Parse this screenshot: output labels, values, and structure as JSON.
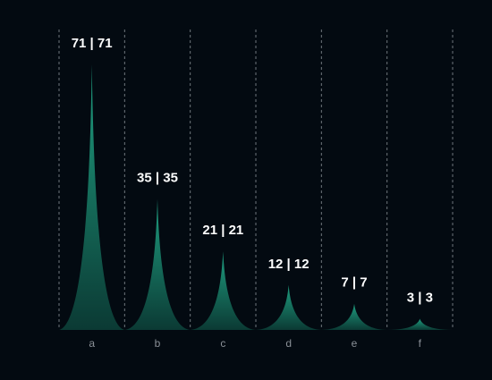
{
  "chart_data": {
    "type": "area",
    "categories": [
      "a",
      "b",
      "c",
      "d",
      "e",
      "f"
    ],
    "series": [
      {
        "values": [
          71,
          35,
          21,
          12,
          7,
          3
        ]
      },
      {
        "values": [
          71,
          35,
          21,
          12,
          7,
          3
        ]
      }
    ],
    "data_labels": [
      "71 | 71",
      "35 | 35",
      "21 | 21",
      "12 | 12",
      "7 | 7",
      "3 | 3"
    ],
    "title": "",
    "xlabel": "",
    "ylabel": "",
    "ylim": [
      0,
      71
    ],
    "grid": "vertical dashed",
    "colors": {
      "background": "#030a11",
      "peak_fill_top": "#1f9e80",
      "peak_fill_bottom": "#0b3a34",
      "grid": "#6f767d",
      "value_label": "#ffffff",
      "tick_label": "#8a9097"
    }
  }
}
